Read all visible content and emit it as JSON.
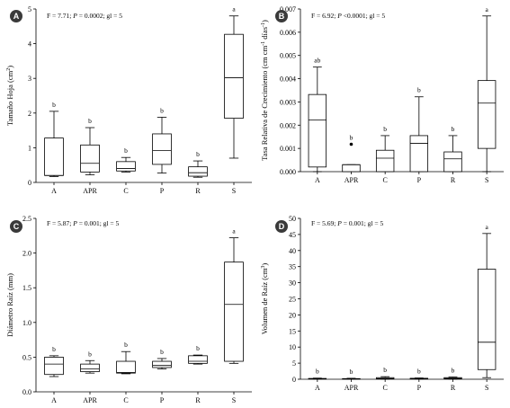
{
  "colors": {
    "ink": "#000000",
    "box_fill": "#ffffff",
    "badge_fill": "#3a3a3a",
    "badge_text": "#ffffff"
  },
  "chart_data": [
    {
      "panel": "A",
      "type": "boxplot",
      "stat_text": "F = 7.71; P = 0.0002; gl = 5",
      "stat_prefix": "F = 7.71; ",
      "stat_p": "P",
      "stat_suffix": " = 0.0002; gl = 5",
      "ylabel": "Tamaño Hoja (cm²)",
      "ylabel_html": "Tamaño Hoja (cm",
      "ylabel_sup": "2",
      "ylabel_end": ")",
      "ylim": [
        0,
        5
      ],
      "yticks": [
        0,
        1,
        2,
        3,
        4,
        5
      ],
      "ytick_labels": [
        "0",
        "1",
        "2",
        "3",
        "4",
        "5"
      ],
      "categories": [
        "A",
        "APR",
        "C",
        "P",
        "R",
        "S"
      ],
      "boxes": [
        {
          "whislo": 0.17,
          "q1": 0.2,
          "med": 0.2,
          "q3": 1.28,
          "whishi": 2.05,
          "fliers": [],
          "letter": "b"
        },
        {
          "whislo": 0.22,
          "q1": 0.3,
          "med": 0.55,
          "q3": 1.08,
          "whishi": 1.58,
          "fliers": [],
          "letter": "b"
        },
        {
          "whislo": 0.3,
          "q1": 0.33,
          "med": 0.4,
          "q3": 0.6,
          "whishi": 0.72,
          "fliers": [],
          "letter": "b"
        },
        {
          "whislo": 0.27,
          "q1": 0.52,
          "med": 0.92,
          "q3": 1.4,
          "whishi": 1.88,
          "fliers": [],
          "letter": "b"
        },
        {
          "whislo": 0.15,
          "q1": 0.18,
          "med": 0.28,
          "q3": 0.45,
          "whishi": 0.62,
          "fliers": [],
          "letter": "b"
        },
        {
          "whislo": 0.7,
          "q1": 1.85,
          "med": 3.02,
          "q3": 4.27,
          "whishi": 4.8,
          "fliers": [],
          "letter": "a"
        }
      ]
    },
    {
      "panel": "B",
      "type": "boxplot",
      "stat_text": "F = 6.92; P <0.0001; gl = 5",
      "stat_prefix": "F = 6.92; ",
      "stat_p": "P",
      "stat_suffix": " <0.0001; gl = 5",
      "ylabel": "Tasa Relativa de Crecimiento (cm cm⁻¹ días⁻¹)",
      "ylabel_html": "Tasa Relativa de Crecimiento (cm cm",
      "ylabel_sup": "-1",
      "ylabel_mid": " días",
      "ylabel_sup2": "-1",
      "ylabel_end": ")",
      "ylim": [
        0,
        0.007
      ],
      "yticks": [
        0,
        0.001,
        0.002,
        0.003,
        0.004,
        0.005,
        0.006,
        0.007
      ],
      "ytick_labels": [
        "0.000",
        "0.001",
        "0.002",
        "0.003",
        "0.004",
        "0.005",
        "0.006",
        "0.007"
      ],
      "categories": [
        "A",
        "APR",
        "C",
        "P",
        "R",
        "S"
      ],
      "boxes": [
        {
          "whislo": 0.0,
          "q1": 0.0002,
          "med": 0.00222,
          "q3": 0.00332,
          "whishi": 0.0045,
          "fliers": [],
          "letter": "ab"
        },
        {
          "whislo": 0.0,
          "q1": 0.0,
          "med": 0.0003,
          "q3": 0.0003,
          "whishi": 0.0003,
          "fliers": [
            0.00118
          ],
          "letter": "b"
        },
        {
          "whislo": 0.0,
          "q1": 0.0,
          "med": 0.00058,
          "q3": 0.00092,
          "whishi": 0.00155,
          "fliers": [],
          "letter": "b"
        },
        {
          "whislo": 0.0,
          "q1": 0.0,
          "med": 0.00122,
          "q3": 0.00155,
          "whishi": 0.00322,
          "fliers": [],
          "letter": "b"
        },
        {
          "whislo": 0.0,
          "q1": 0.0,
          "med": 0.00055,
          "q3": 0.00085,
          "whishi": 0.00155,
          "fliers": [],
          "letter": "b"
        },
        {
          "whislo": 0.0,
          "q1": 0.001,
          "med": 0.00295,
          "q3": 0.00392,
          "whishi": 0.0067,
          "fliers": [],
          "letter": "a"
        }
      ]
    },
    {
      "panel": "C",
      "type": "boxplot",
      "stat_text": "F = 5.87; P = 0.001; gl = 5",
      "stat_prefix": "F = 5.87; ",
      "stat_p": "P",
      "stat_suffix": " = 0.001; gl = 5",
      "ylabel": "Diámetro Raíz (mm)",
      "ylabel_html": "Diámetro Raíz (mm)",
      "ylim": [
        0,
        2.5
      ],
      "yticks": [
        0,
        0.5,
        1.0,
        1.5,
        2.0,
        2.5
      ],
      "ytick_labels": [
        "0.0",
        "0.5",
        "1.0",
        "1.5",
        "2.0",
        "2.5"
      ],
      "categories": [
        "A",
        "APR",
        "C",
        "P",
        "R",
        "S"
      ],
      "boxes": [
        {
          "whislo": 0.22,
          "q1": 0.25,
          "med": 0.4,
          "q3": 0.5,
          "whishi": 0.52,
          "fliers": [],
          "letter": "b"
        },
        {
          "whislo": 0.27,
          "q1": 0.29,
          "med": 0.33,
          "q3": 0.4,
          "whishi": 0.45,
          "fliers": [],
          "letter": "b"
        },
        {
          "whislo": 0.26,
          "q1": 0.27,
          "med": 0.28,
          "q3": 0.44,
          "whishi": 0.58,
          "fliers": [],
          "letter": "b"
        },
        {
          "whislo": 0.33,
          "q1": 0.35,
          "med": 0.38,
          "q3": 0.44,
          "whishi": 0.48,
          "fliers": [],
          "letter": "b"
        },
        {
          "whislo": 0.4,
          "q1": 0.41,
          "med": 0.44,
          "q3": 0.52,
          "whishi": 0.53,
          "fliers": [],
          "letter": "b"
        },
        {
          "whislo": 0.41,
          "q1": 0.44,
          "med": 1.26,
          "q3": 1.87,
          "whishi": 2.22,
          "fliers": [],
          "letter": "a"
        }
      ]
    },
    {
      "panel": "D",
      "type": "boxplot",
      "stat_text": "F = 5.69; P = 0.001; gl = 5",
      "stat_prefix": "F = 5.69; ",
      "stat_p": "P",
      "stat_suffix": " = 0.001; gl = 5",
      "ylabel": "Volumen de Raíz (cm³)",
      "ylabel_html": "Volumen de Raíz (cm",
      "ylabel_sup": "3",
      "ylabel_end": ")",
      "ylim": [
        0,
        50
      ],
      "yticks": [
        0,
        5,
        10,
        15,
        20,
        25,
        30,
        35,
        40,
        45,
        50
      ],
      "ytick_labels": [
        "0",
        "5",
        "10",
        "15",
        "20",
        "25",
        "30",
        "35",
        "40",
        "45",
        "50"
      ],
      "categories": [
        "A",
        "APR",
        "C",
        "P",
        "R",
        "S"
      ],
      "boxes": [
        {
          "whislo": 0.05,
          "q1": 0.08,
          "med": 0.12,
          "q3": 0.25,
          "whishi": 0.35,
          "fliers": [],
          "letter": "b"
        },
        {
          "whislo": 0.05,
          "q1": 0.08,
          "med": 0.1,
          "q3": 0.2,
          "whishi": 0.3,
          "fliers": [],
          "letter": "b"
        },
        {
          "whislo": 0.05,
          "q1": 0.1,
          "med": 0.2,
          "q3": 0.5,
          "whishi": 0.8,
          "fliers": [],
          "letter": "b"
        },
        {
          "whislo": 0.05,
          "q1": 0.1,
          "med": 0.15,
          "q3": 0.3,
          "whishi": 0.4,
          "fliers": [],
          "letter": "b"
        },
        {
          "whislo": 0.05,
          "q1": 0.1,
          "med": 0.25,
          "q3": 0.5,
          "whishi": 0.7,
          "fliers": [],
          "letter": "b"
        },
        {
          "whislo": 0.5,
          "q1": 3.0,
          "med": 11.5,
          "q3": 34.2,
          "whishi": 45.3,
          "fliers": [],
          "letter": "a"
        }
      ]
    }
  ]
}
